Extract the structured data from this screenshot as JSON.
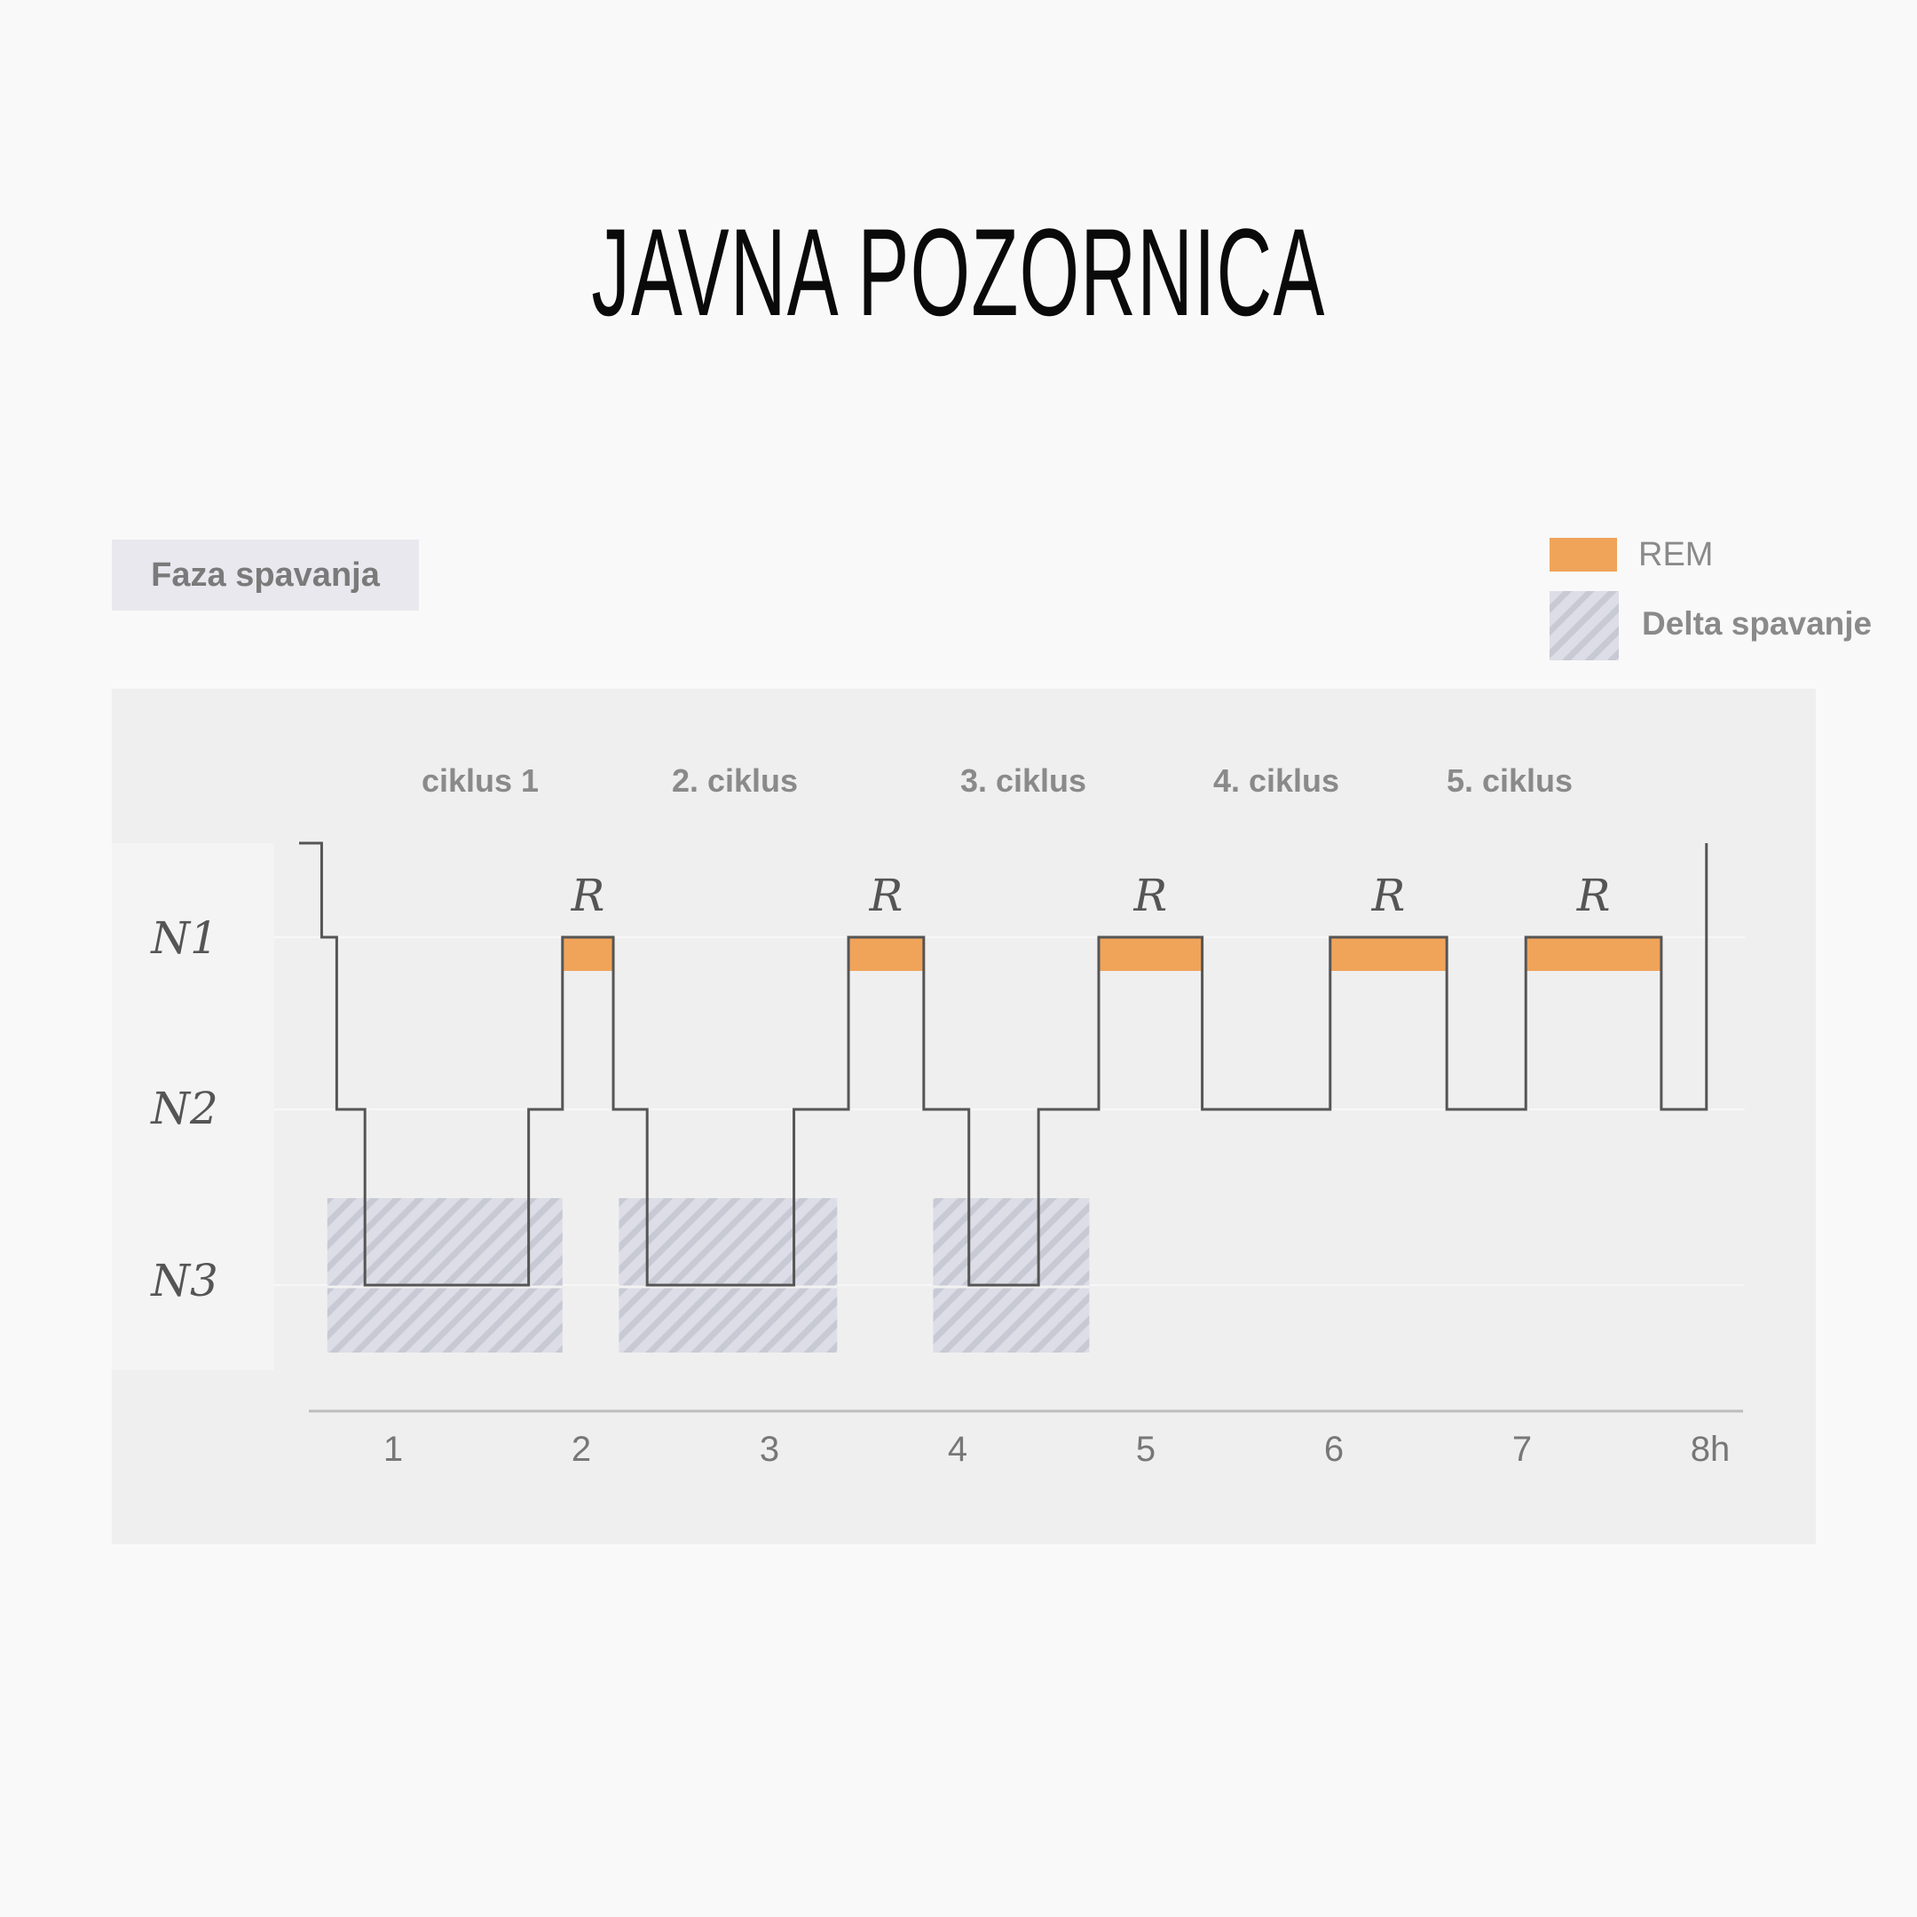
{
  "page": {
    "title": "JAVNA POZORNICA"
  },
  "chart_data": {
    "type": "hypnogram",
    "title": "Faza spavanja",
    "x_ticks": [
      "1",
      "2",
      "3",
      "4",
      "5",
      "6",
      "7",
      "8h"
    ],
    "y_levels": [
      "N1",
      "N2",
      "N3"
    ],
    "cycle_labels": [
      "ciklus 1",
      "2. ciklus",
      "3. ciklus",
      "4. ciklus",
      "5. ciklus"
    ],
    "rem_marker": "R",
    "legend": [
      {
        "label": "REM",
        "color": "#f0a45a"
      },
      {
        "label": "Delta spavanje",
        "pattern": "hatched",
        "color": "#c7c9d4"
      }
    ],
    "xlim": [
      0.5,
      8.0
    ],
    "stage_steps": [
      {
        "x": 0.5,
        "stage": "wake"
      },
      {
        "x": 0.62,
        "stage": "N1"
      },
      {
        "x": 0.7,
        "stage": "N2"
      },
      {
        "x": 0.85,
        "stage": "N3"
      },
      {
        "x": 1.72,
        "stage": "N2"
      },
      {
        "x": 1.9,
        "stage": "R"
      },
      {
        "x": 2.17,
        "stage": "N2"
      },
      {
        "x": 2.35,
        "stage": "N3"
      },
      {
        "x": 3.13,
        "stage": "N2"
      },
      {
        "x": 3.42,
        "stage": "R"
      },
      {
        "x": 3.82,
        "stage": "N2"
      },
      {
        "x": 4.06,
        "stage": "N3"
      },
      {
        "x": 4.43,
        "stage": "N2"
      },
      {
        "x": 4.75,
        "stage": "R"
      },
      {
        "x": 5.3,
        "stage": "N2"
      },
      {
        "x": 5.98,
        "stage": "R"
      },
      {
        "x": 6.6,
        "stage": "N2"
      },
      {
        "x": 7.02,
        "stage": "R"
      },
      {
        "x": 7.74,
        "stage": "N2"
      },
      {
        "x": 7.98,
        "stage": "wake"
      }
    ],
    "rem_periods": [
      [
        1.9,
        2.17
      ],
      [
        3.42,
        3.82
      ],
      [
        4.75,
        5.3
      ],
      [
        5.98,
        6.6
      ],
      [
        7.02,
        7.74
      ]
    ],
    "delta_periods": [
      [
        0.65,
        1.9
      ],
      [
        2.2,
        3.36
      ],
      [
        3.87,
        4.7
      ]
    ],
    "colors": {
      "rem": "#f0a45a",
      "line": "#555555",
      "delta_base": "#dcdde6",
      "delta_stripe": "#c7c9d4",
      "label_gray": "#8a8a8a"
    }
  }
}
